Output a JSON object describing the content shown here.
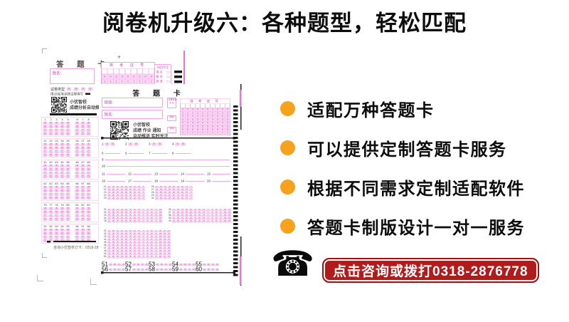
{
  "page": {
    "title": "阅卷机升级六：各种题型，轻松匹配",
    "background": "#ffffff"
  },
  "colors": {
    "accent_orange": "#F6A21D",
    "banner_red": "#B21B1B",
    "sheet_magenta": "#CF3CB8",
    "sheet_pink_fill": "#FBD7F4",
    "sheet_pink_border": "#F0A3E0",
    "ink": "#0D0D0D"
  },
  "bullets": [
    {
      "label": "适配万种答题卡"
    },
    {
      "label": "可以提供定制答题卡服务"
    },
    {
      "label": "根据不同需求定制适配软件"
    },
    {
      "label": "答题卡制版设计一对一服务"
    }
  ],
  "contact": {
    "banner_text": "点击咨询或拨打0318-2876778",
    "phone_glyph": "☎"
  },
  "back_sheet": {
    "title": "答 题 卡",
    "plus_mark": "+",
    "name_label": "姓名:",
    "exam_no_header": "准 考 证 号",
    "exam_no_cols": 9,
    "exam_no_digit_rows": 2,
    "digits": "0123456789",
    "subject_header": "科目代号",
    "subject_rows": [
      "语 文",
      "数 学",
      "英 语"
    ],
    "type_label": "试卷类型",
    "type_options": [
      "A",
      "B",
      "C",
      "D"
    ],
    "pencil_note": "用2B铅笔涂抹注释填写",
    "qr_line1": "小优智校",
    "qr_line2": "成绩分析自动推送",
    "row_letters": [
      "A",
      "B",
      "C",
      "D"
    ],
    "answer_blocks": [
      {
        "groups": [
          [
            1,
            2,
            3,
            4,
            5
          ],
          [
            6,
            7,
            8
          ]
        ]
      },
      {
        "groups": [
          [
            21,
            22,
            23,
            24,
            25
          ],
          [
            26,
            27,
            28
          ]
        ]
      },
      {
        "groups": [
          [
            41,
            42,
            43,
            44,
            45
          ],
          [
            46,
            47,
            48
          ]
        ]
      },
      {
        "groups": [
          [
            61,
            62,
            63,
            64,
            65
          ],
          [
            66,
            67,
            68
          ]
        ]
      },
      {
        "groups": [
          [
            76,
            77,
            78,
            79,
            80
          ],
          [
            81,
            82,
            83
          ]
        ]
      },
      {
        "groups": [
          [
            91,
            92,
            93,
            94,
            95
          ],
          [
            96,
            97,
            98
          ]
        ]
      }
    ],
    "footer_note": "咨询小优智校订卡：0318-28"
  },
  "front_sheet": {
    "title": "答 题 卡",
    "class_label": "班级:",
    "name_label": "姓名:",
    "type_box_label": "试卷类型",
    "type_box_options": [
      "A",
      "B"
    ],
    "absent_box_label": "缺考",
    "barcode_box_label": "条码",
    "exam_no_header": "准 考 证 号",
    "exam_no_cols": 10,
    "exam_no_digit_rows": 8,
    "digits": "0123456789",
    "qr_line1": "小优智校",
    "qr_line2": "成绩 作业 通知",
    "qr_line3": "自动推送 实时关注",
    "choice_items": [
      {
        "n": 1,
        "options": [
          "A",
          "B"
        ]
      },
      {
        "n": 2,
        "options": [
          "A",
          "B"
        ]
      },
      {
        "n": 3,
        "options": [
          "A",
          "B"
        ]
      },
      {
        "n": 4,
        "options": [
          "A",
          "B"
        ]
      }
    ],
    "blank_rows": [
      [
        5,
        6,
        7,
        8
      ],
      [
        11,
        12,
        13,
        14,
        15
      ],
      [
        16,
        17,
        18,
        19,
        20
      ]
    ],
    "line_items": [
      9,
      10
    ],
    "mc_letters": "ABCDEFGHIJKLMNO",
    "grid_blocks": [
      {
        "groups": [
          {
            "rows": [
              21,
              22,
              23,
              24,
              25
            ],
            "chips": 9
          },
          {
            "rows": [
              26,
              27,
              28,
              29,
              30
            ],
            "chips": 9
          }
        ]
      },
      {
        "groups": [
          {
            "rows": [
              31,
              32,
              33,
              34,
              35
            ],
            "chips": 13
          },
          {
            "rows": [
              36,
              37,
              38,
              39,
              40
            ],
            "chips": 14
          }
        ]
      },
      {
        "groups": [
          {
            "rows": [
              41,
              42,
              43,
              44,
              45,
              46,
              47,
              48,
              49,
              50
            ],
            "chips": 15
          }
        ]
      }
    ],
    "bottom_rows": [
      {
        "numbers": [
          51,
          52,
          53,
          54,
          55
        ]
      },
      {
        "numbers": [
          56,
          57,
          58,
          59,
          60
        ]
      }
    ],
    "bottom_options": [
      "A",
      "B",
      "C",
      "D"
    ]
  }
}
